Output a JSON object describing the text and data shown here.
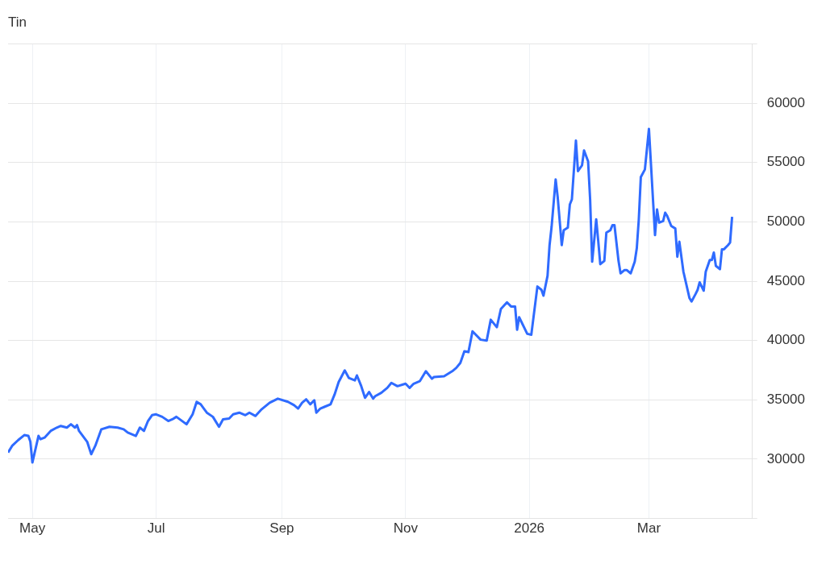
{
  "chart_data": {
    "type": "line",
    "title": "Tin",
    "xlim": [
      "2025-04-19",
      "2026-04-21"
    ],
    "ylim": [
      25000,
      65000
    ],
    "xticks": [
      {
        "value": "2025-05-01",
        "label": "May"
      },
      {
        "value": "2025-07-01",
        "label": "Jul"
      },
      {
        "value": "2025-09-01",
        "label": "Sep"
      },
      {
        "value": "2025-11-01",
        "label": "Nov"
      },
      {
        "value": "2026-01-01",
        "label": "2026"
      },
      {
        "value": "2026-03-01",
        "label": "Mar"
      }
    ],
    "yticks": [
      {
        "value": 25000,
        "label": null
      },
      30000,
      35000,
      40000,
      45000,
      50000,
      55000,
      60000,
      {
        "value": 65000,
        "label": null
      }
    ],
    "grid": true,
    "legend": false,
    "marker": "none",
    "line_style": "solid",
    "series": [
      {
        "color": "#2f6bff",
        "x": [
          "2025-04-19",
          "2025-04-21",
          "2025-04-24",
          "2025-04-27",
          "2025-04-29",
          "2025-04-30",
          "2025-05-01",
          "2025-05-04",
          "2025-05-05",
          "2025-05-07",
          "2025-05-10",
          "2025-05-13",
          "2025-05-15",
          "2025-05-18",
          "2025-05-20",
          "2025-05-22",
          "2025-05-23",
          "2025-05-24",
          "2025-05-28",
          "2025-05-30",
          "2025-06-01",
          "2025-06-04",
          "2025-06-08",
          "2025-06-12",
          "2025-06-15",
          "2025-06-17",
          "2025-06-21",
          "2025-06-23",
          "2025-06-25",
          "2025-06-27",
          "2025-06-29",
          "2025-07-01",
          "2025-07-04",
          "2025-07-07",
          "2025-07-09",
          "2025-07-11",
          "2025-07-16",
          "2025-07-19",
          "2025-07-21",
          "2025-07-23",
          "2025-07-26",
          "2025-07-29",
          "2025-08-01",
          "2025-08-03",
          "2025-08-06",
          "2025-08-08",
          "2025-08-11",
          "2025-08-14",
          "2025-08-16",
          "2025-08-19",
          "2025-08-22",
          "2025-08-26",
          "2025-08-30",
          "2025-09-04",
          "2025-09-07",
          "2025-09-09",
          "2025-09-11",
          "2025-09-13",
          "2025-09-15",
          "2025-09-17",
          "2025-09-18",
          "2025-09-20",
          "2025-09-22",
          "2025-09-25",
          "2025-09-27",
          "2025-09-29",
          "2025-10-02",
          "2025-10-04",
          "2025-10-07",
          "2025-10-08",
          "2025-10-10",
          "2025-10-12",
          "2025-10-14",
          "2025-10-16",
          "2025-10-17",
          "2025-10-20",
          "2025-10-23",
          "2025-10-25",
          "2025-10-28",
          "2025-11-01",
          "2025-11-03",
          "2025-11-05",
          "2025-11-08",
          "2025-11-11",
          "2025-11-14",
          "2025-11-15",
          "2025-11-20",
          "2025-11-24",
          "2025-11-26",
          "2025-11-28",
          "2025-11-30",
          "2025-12-02",
          "2025-12-04",
          "2025-12-08",
          "2025-12-11",
          "2025-12-13",
          "2025-12-16",
          "2025-12-18",
          "2025-12-21",
          "2025-12-23",
          "2025-12-25",
          "2025-12-26",
          "2025-12-27",
          "2025-12-31",
          "2026-01-02",
          "2026-01-05",
          "2026-01-07",
          "2026-01-08",
          "2026-01-10",
          "2026-01-11",
          "2026-01-12",
          "2026-01-14",
          "2026-01-15",
          "2026-01-17",
          "2026-01-18",
          "2026-01-20",
          "2026-01-21",
          "2026-01-22",
          "2026-01-24",
          "2026-01-25",
          "2026-01-27",
          "2026-01-28",
          "2026-01-30",
          "2026-01-31",
          "2026-02-01",
          "2026-02-03",
          "2026-02-04",
          "2026-02-05",
          "2026-02-07",
          "2026-02-08",
          "2026-02-10",
          "2026-02-11",
          "2026-02-12",
          "2026-02-14",
          "2026-02-15",
          "2026-02-17",
          "2026-02-18",
          "2026-02-20",
          "2026-02-22",
          "2026-02-23",
          "2026-02-24",
          "2026-02-25",
          "2026-02-27",
          "2026-03-01",
          "2026-03-04",
          "2026-03-05",
          "2026-03-06",
          "2026-03-08",
          "2026-03-09",
          "2026-03-10",
          "2026-03-12",
          "2026-03-14",
          "2026-03-15",
          "2026-03-16",
          "2026-03-18",
          "2026-03-21",
          "2026-03-22",
          "2026-03-24",
          "2026-03-25",
          "2026-03-26",
          "2026-03-28",
          "2026-03-29",
          "2026-03-31",
          "2026-04-01",
          "2026-04-02",
          "2026-04-03",
          "2026-04-05",
          "2026-04-06",
          "2026-04-07",
          "2026-04-09",
          "2026-04-10",
          "2026-04-11"
        ],
        "values": [
          30560,
          31120,
          31610,
          32030,
          31960,
          31470,
          29720,
          31960,
          31680,
          31820,
          32380,
          32660,
          32800,
          32660,
          32940,
          32660,
          32870,
          32380,
          31470,
          30420,
          31120,
          32520,
          32730,
          32660,
          32520,
          32240,
          31960,
          32660,
          32380,
          33220,
          33710,
          33780,
          33570,
          33220,
          33360,
          33570,
          32940,
          33780,
          34830,
          34620,
          33920,
          33570,
          32730,
          33360,
          33430,
          33780,
          33920,
          33710,
          33920,
          33640,
          34200,
          34760,
          35100,
          34830,
          34550,
          34270,
          34760,
          35040,
          34620,
          34970,
          33920,
          34270,
          34410,
          34620,
          35450,
          36500,
          37480,
          36850,
          36640,
          37060,
          36220,
          35170,
          35660,
          35100,
          35310,
          35590,
          36010,
          36430,
          36150,
          36360,
          36010,
          36360,
          36570,
          37410,
          36780,
          36920,
          36990,
          37410,
          37690,
          38110,
          39090,
          39020,
          40770,
          40070,
          40000,
          41750,
          41120,
          42660,
          43220,
          42870,
          42870,
          40910,
          41960,
          40560,
          40490,
          44550,
          44270,
          43780,
          45450,
          48040,
          49580,
          53570,
          52100,
          48040,
          49300,
          49510,
          51470,
          51890,
          56850,
          54270,
          54760,
          56010,
          55100,
          51890,
          46640,
          50210,
          48390,
          46430,
          46710,
          49090,
          49300,
          49720,
          49720,
          46710,
          45660,
          45940,
          45940,
          45660,
          46640,
          47760,
          50210,
          53780,
          54410,
          57830,
          48880,
          51050,
          49930,
          50070,
          50770,
          50490,
          49650,
          49440,
          47060,
          48320,
          45800,
          43570,
          43290,
          43920,
          44270,
          44900,
          44200,
          45800,
          46780,
          46780,
          47410,
          46290,
          46010,
          47690,
          47690,
          48040,
          48250,
          50420
        ]
      }
    ]
  }
}
